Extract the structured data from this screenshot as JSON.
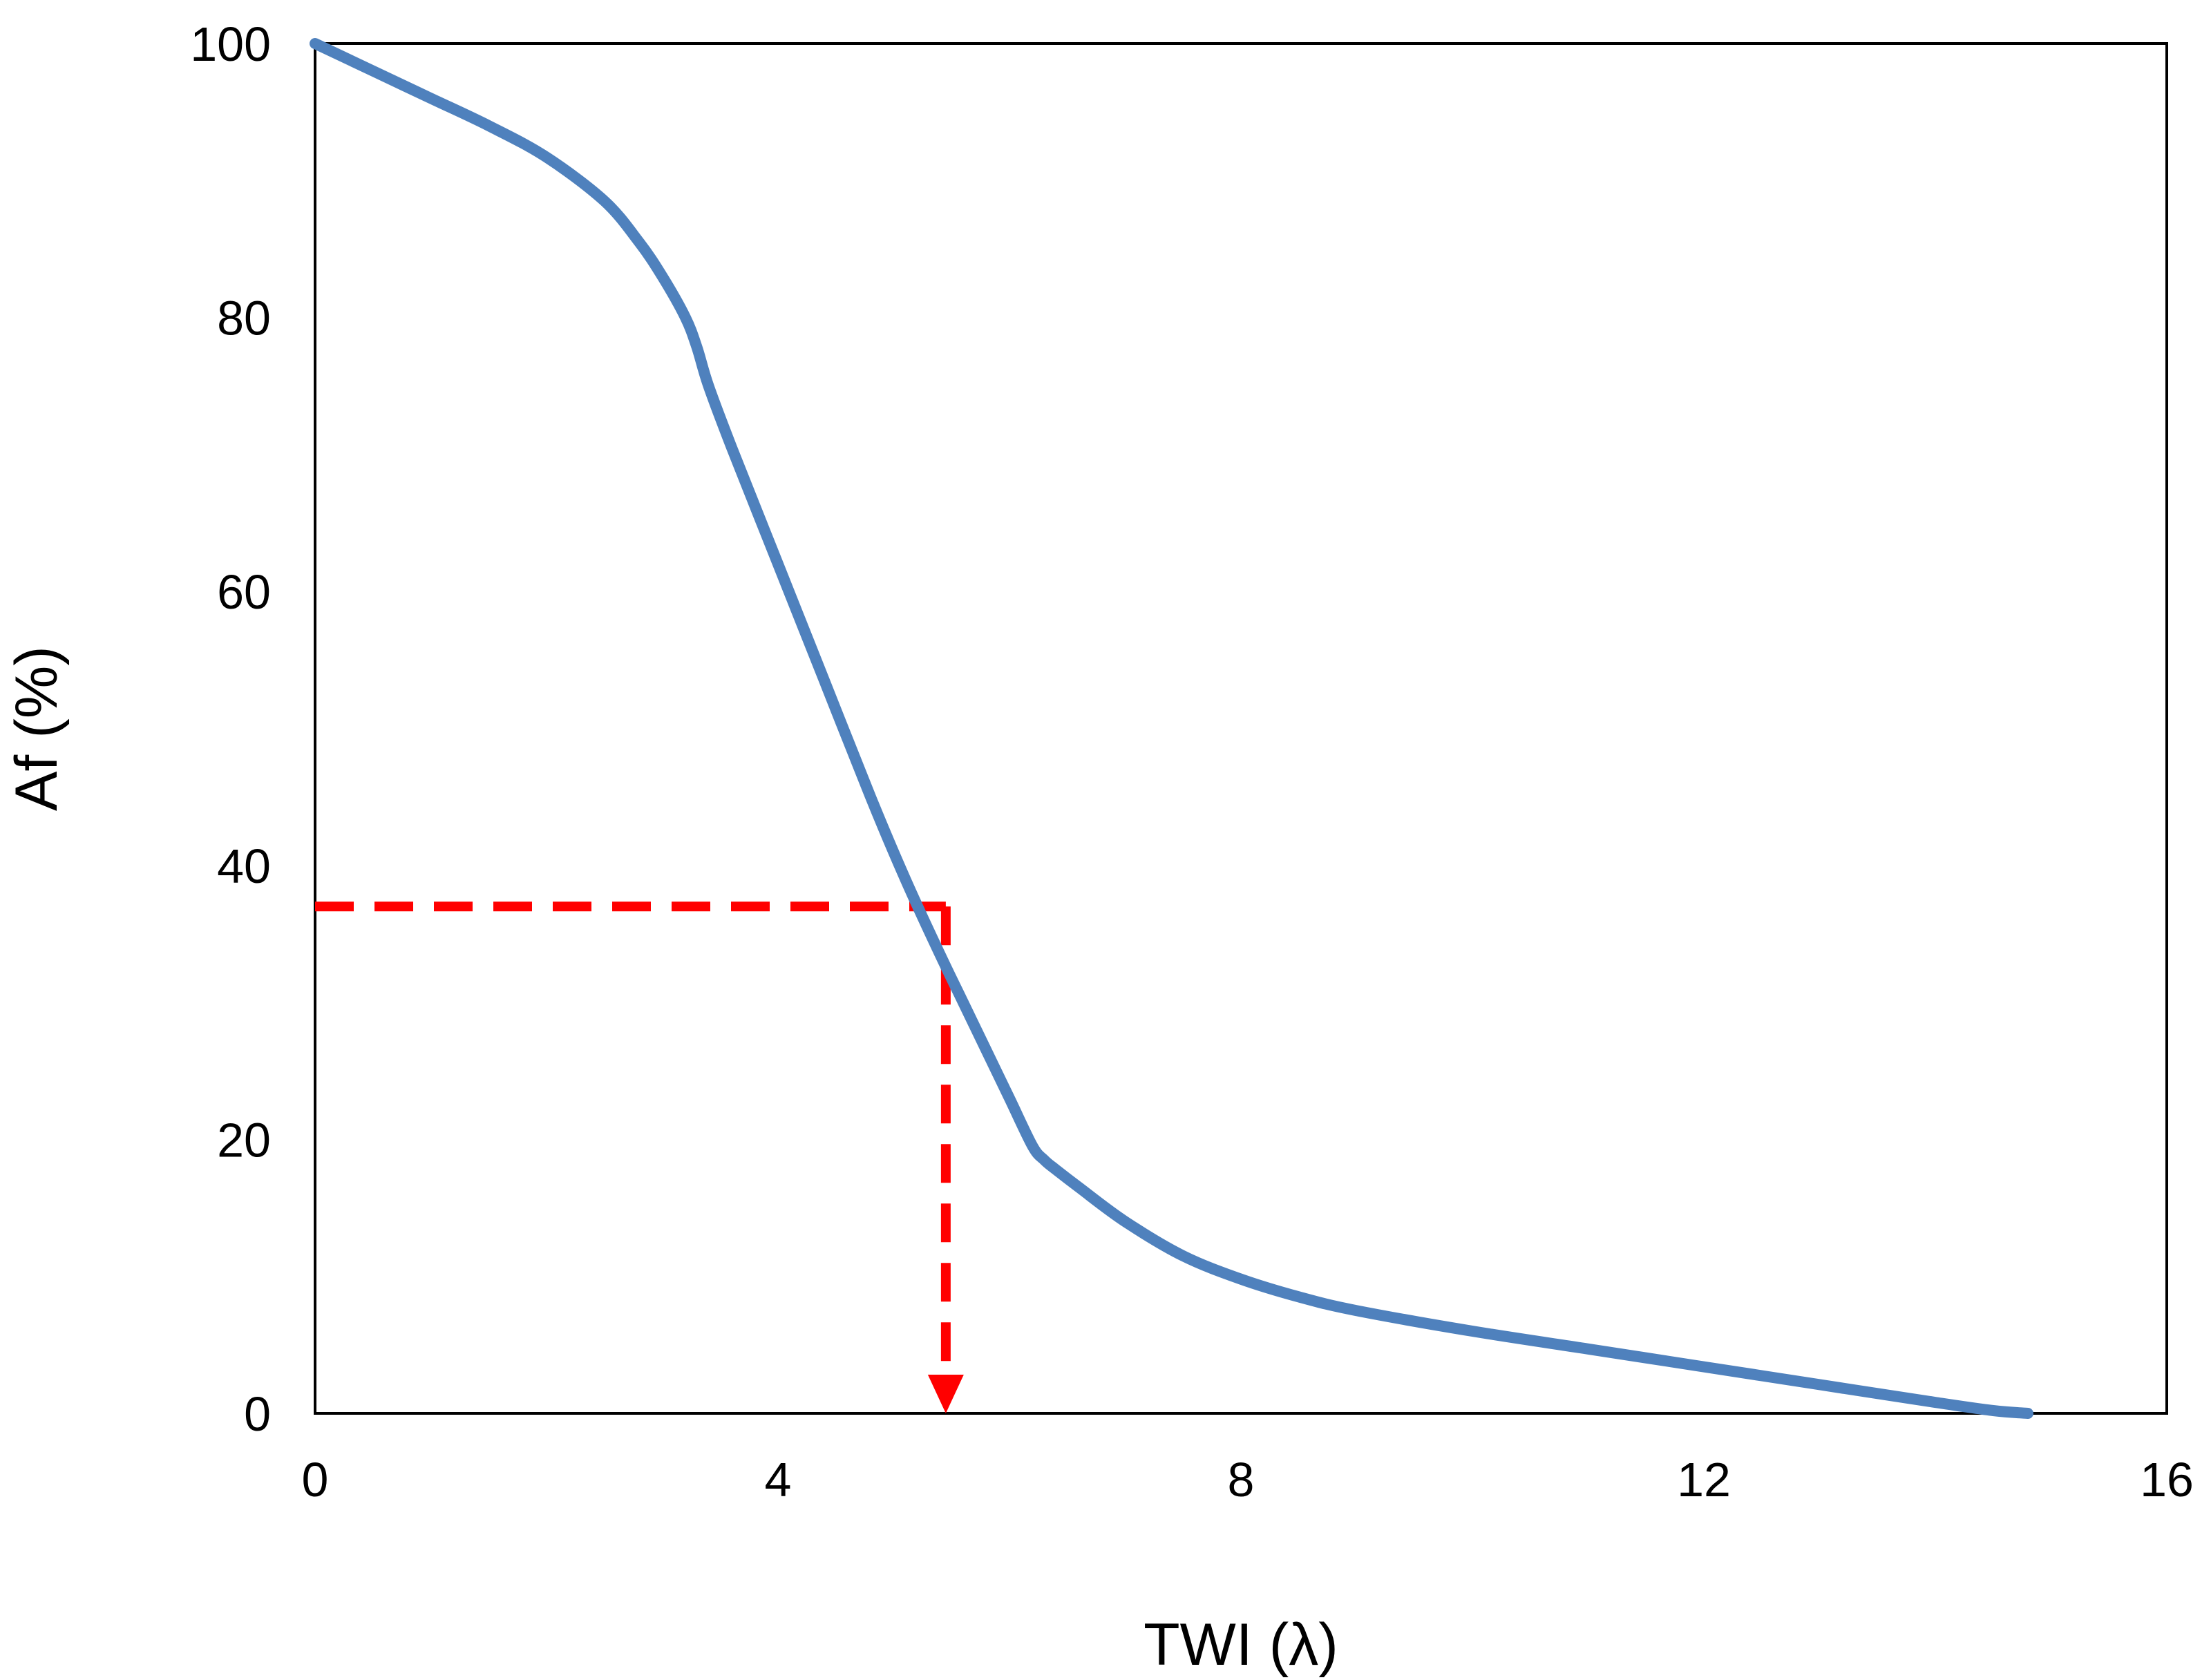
{
  "chart_data": {
    "type": "line",
    "title": "",
    "xlabel": "TWI (λ)",
    "ylabel": "Af (%)",
    "xlim": [
      0,
      16
    ],
    "ylim": [
      0,
      100
    ],
    "x_ticks": [
      "0",
      "4",
      "8",
      "12",
      "16"
    ],
    "y_ticks": [
      "0",
      "20",
      "40",
      "60",
      "80",
      "100"
    ],
    "grid": false,
    "legend": "none",
    "series": [
      {
        "color": "#4F81BD",
        "x": [
          0,
          0.5,
          1.0,
          1.5,
          2.0,
          2.5,
          2.8,
          3.0,
          3.2,
          3.3,
          3.4,
          3.6,
          4.0,
          4.4,
          4.8,
          5.1,
          5.4,
          5.6,
          5.8,
          6.0,
          6.2,
          6.3,
          6.4,
          6.6,
          7.0,
          7.5,
          8.0,
          8.5,
          9.0,
          10.0,
          11.0,
          12.0,
          13.0,
          14.0,
          14.5,
          14.8
        ],
        "y": [
          100,
          98,
          96,
          94,
          91.7,
          88.5,
          85.5,
          83,
          80,
          77.8,
          75,
          70.5,
          62,
          53.5,
          45,
          39,
          33.5,
          30,
          26.5,
          23,
          19.5,
          18.5,
          17.8,
          16.5,
          14,
          11.5,
          9.8,
          8.5,
          7.5,
          6,
          4.7,
          3.4,
          2.1,
          0.8,
          0.2,
          0
        ]
      }
    ],
    "annotations": [
      {
        "type": "dashed-guide",
        "color": "#FF0000",
        "point": {
          "x": 5.45,
          "y": 37
        },
        "horizontal_from_x": 0,
        "vertical_to_y": 0,
        "arrow": "down"
      }
    ]
  }
}
